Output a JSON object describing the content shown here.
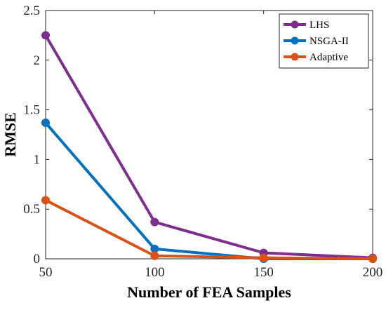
{
  "chart_data": {
    "type": "line",
    "xlabel": "Number of FEA Samples",
    "ylabel": "RMSE",
    "x": [
      50,
      100,
      150,
      200
    ],
    "xlim": [
      50,
      200
    ],
    "ylim": [
      0,
      2.5
    ],
    "xticks": [
      "50",
      "100",
      "150",
      "200"
    ],
    "yticks": [
      "0",
      "0.5",
      "1",
      "1.5",
      "2",
      "2.5"
    ],
    "grid": false,
    "legend_position": "top-right",
    "series": [
      {
        "name": "LHS",
        "color": "#7E2F8E",
        "values": [
          2.25,
          0.37,
          0.06,
          0.01
        ]
      },
      {
        "name": "NSGA-II",
        "color": "#0072BD",
        "values": [
          1.37,
          0.1,
          0.0,
          0.0
        ]
      },
      {
        "name": "Adaptive",
        "color": "#D95319",
        "values": [
          0.59,
          0.03,
          0.01,
          0.0
        ]
      }
    ]
  }
}
